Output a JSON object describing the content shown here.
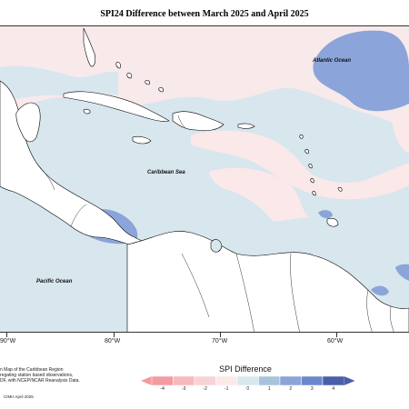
{
  "title": "SPI24 Difference between March 2025 and April 2025",
  "labels": {
    "atlantic": "Atlantic Ocean",
    "caribbean": "Caribbean Sea",
    "pacific": "Pacific Ocean"
  },
  "longitude_ticks": [
    "90°W",
    "80°W",
    "70°W",
    "60°W"
  ],
  "description": [
    "n Map of the Caribbean Region",
    "regating station based observations,",
    "DF, with NCEP/NCAR Reanalysis Data."
  ],
  "credit": "CIMH April 2025",
  "legend": {
    "title": "SPI Difference",
    "ticks": [
      "-4",
      "-3",
      "-2",
      "-1",
      "0",
      "1",
      "2",
      "3",
      "4"
    ],
    "colors": [
      "#f49ba0",
      "#f6b9bc",
      "#f8d3d5",
      "#fbe8e9",
      "#d9e7ee",
      "#a9c3dc",
      "#8ba4d9",
      "#6d87cf",
      "#4a5fa8"
    ]
  }
}
